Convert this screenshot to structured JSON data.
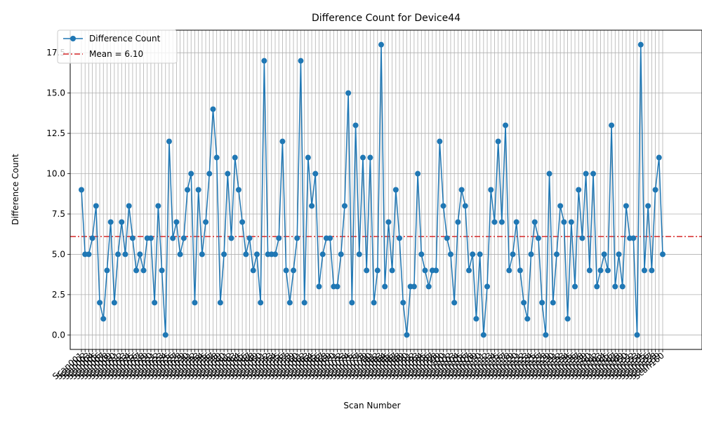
{
  "chart_data": {
    "type": "line",
    "title": "Difference Count for Device44",
    "xlabel": "Scan Number",
    "ylabel": "Difference Count",
    "ylim": [
      -0.9,
      18.9
    ],
    "yticks": [
      0.0,
      2.5,
      5.0,
      7.5,
      10.0,
      12.5,
      15.0,
      17.5
    ],
    "ytick_labels": [
      "0.0",
      "2.5",
      "5.0",
      "7.5",
      "10.0",
      "12.5",
      "15.0",
      "17.5"
    ],
    "grid": true,
    "legend_position": "upper-left",
    "line_color": "#1f77b4",
    "mean_color": "#d62728",
    "series": [
      {
        "name": "Difference Count",
        "values": [
          9,
          5,
          5,
          6,
          8,
          2,
          1,
          4,
          7,
          2,
          5,
          7,
          5,
          8,
          6,
          4,
          5,
          4,
          6,
          6,
          2,
          8,
          4,
          0,
          12,
          6,
          7,
          5,
          6,
          9,
          10,
          2,
          9,
          5,
          7,
          10,
          14,
          11,
          2,
          5,
          10,
          6,
          11,
          9,
          7,
          5,
          6,
          4,
          5,
          2,
          17,
          5,
          5,
          5,
          6,
          12,
          4,
          2,
          4,
          6,
          17,
          2,
          11,
          8,
          10,
          3,
          5,
          6,
          6,
          3,
          3,
          5,
          8,
          15,
          2,
          13,
          5,
          11,
          4,
          11,
          2,
          4,
          18,
          3,
          7,
          4,
          9,
          6,
          2,
          0,
          3,
          3,
          10,
          5,
          4,
          3,
          4,
          4,
          12,
          8,
          6,
          5,
          2,
          7,
          9,
          8,
          4,
          5,
          1,
          5,
          0,
          3,
          9,
          7,
          12,
          7,
          13,
          4,
          5,
          7,
          4,
          2,
          1,
          5,
          7,
          6,
          2,
          0,
          10,
          2,
          5,
          8,
          7,
          1,
          7,
          3,
          9,
          6,
          10,
          4,
          10,
          3,
          4,
          5,
          4,
          13,
          3,
          5,
          3,
          8,
          6,
          6,
          0,
          18,
          4,
          8,
          4,
          9,
          11,
          5
        ]
      }
    ],
    "x_prefix": "Scan",
    "mean": {
      "value": 6.1,
      "label": "Mean = 6.10"
    }
  }
}
